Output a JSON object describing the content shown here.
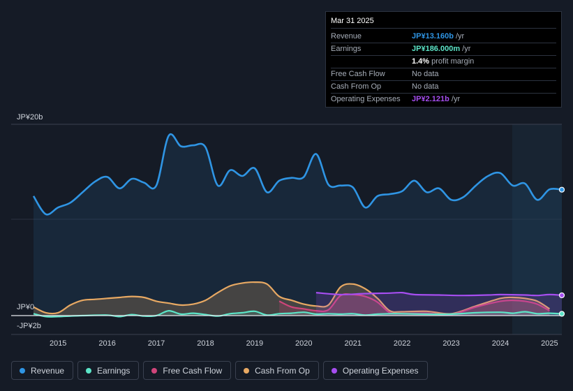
{
  "tooltip": {
    "date": "Mar 31 2025",
    "rows": [
      {
        "label": "Revenue",
        "value": "JP¥13.160b",
        "suffix": " /yr"
      },
      {
        "label": "Earnings",
        "value": "JP¥186.000m",
        "suffix": " /yr"
      },
      {
        "label": "",
        "value": "1.4%",
        "suffix": " profit margin"
      },
      {
        "label": "Free Cash Flow",
        "value": "No data",
        "suffix": ""
      },
      {
        "label": "Cash From Op",
        "value": "No data",
        "suffix": ""
      },
      {
        "label": "Operating Expenses",
        "value": "JP¥2.121b",
        "suffix": " /yr"
      }
    ]
  },
  "legend": {
    "revenue": "Revenue",
    "earnings": "Earnings",
    "fcf": "Free Cash Flow",
    "cfo": "Cash From Op",
    "opex": "Operating Expenses"
  },
  "colors": {
    "revenue": "#2f95e4",
    "earnings": "#5ce5c8",
    "fcf": "#d0457a",
    "cfo": "#e8a963",
    "opex": "#a64ef0"
  },
  "chart_data": {
    "type": "area",
    "title": "",
    "xlabel": "",
    "ylabel": "",
    "y_axis_labels": [
      "JP¥20b",
      "JP¥0",
      "-JP¥2b"
    ],
    "x_tick_labels": [
      "2015",
      "2016",
      "2017",
      "2018",
      "2019",
      "2020",
      "2021",
      "2022",
      "2023",
      "2024",
      "2025"
    ],
    "x_tick_values": [
      2015,
      2016,
      2017,
      2018,
      2019,
      2020,
      2021,
      2022,
      2023,
      2024,
      2025
    ],
    "xlim": [
      2014.5,
      2025.25
    ],
    "ylim": [
      -2,
      20
    ],
    "highlight_from": 2024.25,
    "series": [
      {
        "name": "Revenue",
        "key": "revenue",
        "points": [
          [
            2014.5,
            12.5
          ],
          [
            2014.75,
            10.6
          ],
          [
            2015.0,
            11.3
          ],
          [
            2015.25,
            11.8
          ],
          [
            2015.5,
            12.9
          ],
          [
            2015.75,
            14.0
          ],
          [
            2016.0,
            14.5
          ],
          [
            2016.25,
            13.3
          ],
          [
            2016.5,
            14.3
          ],
          [
            2016.75,
            13.9
          ],
          [
            2017.0,
            13.6
          ],
          [
            2017.25,
            18.8
          ],
          [
            2017.5,
            17.7
          ],
          [
            2017.75,
            17.8
          ],
          [
            2018.0,
            17.6
          ],
          [
            2018.25,
            13.6
          ],
          [
            2018.5,
            15.2
          ],
          [
            2018.75,
            14.6
          ],
          [
            2019.0,
            15.4
          ],
          [
            2019.25,
            12.9
          ],
          [
            2019.5,
            14.1
          ],
          [
            2019.75,
            14.4
          ],
          [
            2020.0,
            14.5
          ],
          [
            2020.25,
            16.9
          ],
          [
            2020.5,
            13.7
          ],
          [
            2020.75,
            13.6
          ],
          [
            2021.0,
            13.4
          ],
          [
            2021.25,
            11.3
          ],
          [
            2021.5,
            12.5
          ],
          [
            2021.75,
            12.7
          ],
          [
            2022.0,
            13.0
          ],
          [
            2022.25,
            14.1
          ],
          [
            2022.5,
            12.9
          ],
          [
            2022.75,
            13.3
          ],
          [
            2023.0,
            12.1
          ],
          [
            2023.25,
            12.4
          ],
          [
            2023.5,
            13.6
          ],
          [
            2023.75,
            14.6
          ],
          [
            2024.0,
            14.9
          ],
          [
            2024.25,
            13.6
          ],
          [
            2024.5,
            13.8
          ],
          [
            2024.75,
            12.1
          ],
          [
            2025.0,
            13.2
          ],
          [
            2025.25,
            13.16
          ]
        ]
      },
      {
        "name": "Earnings",
        "key": "earnings",
        "points": [
          [
            2014.5,
            0.2
          ],
          [
            2014.75,
            -0.1
          ],
          [
            2015.0,
            -0.1
          ],
          [
            2015.5,
            0.0
          ],
          [
            2016.0,
            0.05
          ],
          [
            2016.25,
            -0.1
          ],
          [
            2016.5,
            0.1
          ],
          [
            2016.75,
            -0.05
          ],
          [
            2017.0,
            0.0
          ],
          [
            2017.25,
            0.5
          ],
          [
            2017.5,
            0.15
          ],
          [
            2017.75,
            0.25
          ],
          [
            2018.0,
            0.1
          ],
          [
            2018.25,
            -0.05
          ],
          [
            2018.5,
            0.2
          ],
          [
            2018.75,
            0.3
          ],
          [
            2019.0,
            0.45
          ],
          [
            2019.25,
            0.05
          ],
          [
            2019.5,
            0.2
          ],
          [
            2019.75,
            0.25
          ],
          [
            2020.0,
            0.35
          ],
          [
            2020.25,
            0.15
          ],
          [
            2020.5,
            0.2
          ],
          [
            2020.75,
            0.15
          ],
          [
            2021.0,
            0.2
          ],
          [
            2021.25,
            0.05
          ],
          [
            2021.5,
            0.15
          ],
          [
            2021.75,
            0.2
          ],
          [
            2022.0,
            0.2
          ],
          [
            2022.5,
            0.15
          ],
          [
            2023.0,
            0.15
          ],
          [
            2023.5,
            0.3
          ],
          [
            2024.0,
            0.35
          ],
          [
            2024.25,
            0.25
          ],
          [
            2024.5,
            0.4
          ],
          [
            2024.75,
            0.2
          ],
          [
            2025.0,
            0.25
          ],
          [
            2025.25,
            0.186
          ]
        ]
      },
      {
        "name": "Free Cash Flow",
        "key": "fcf",
        "points": [
          [
            2019.5,
            1.5
          ],
          [
            2019.75,
            0.9
          ],
          [
            2020.0,
            0.7
          ],
          [
            2020.25,
            0.5
          ],
          [
            2020.5,
            0.6
          ],
          [
            2020.75,
            2.1
          ],
          [
            2021.0,
            2.2
          ],
          [
            2021.25,
            2.0
          ],
          [
            2021.5,
            1.4
          ],
          [
            2021.75,
            0.3
          ],
          [
            2022.0,
            0.2
          ],
          [
            2022.5,
            0.25
          ],
          [
            2023.0,
            0.1
          ],
          [
            2023.5,
            0.9
          ],
          [
            2024.0,
            1.5
          ],
          [
            2024.25,
            1.6
          ],
          [
            2024.5,
            1.5
          ],
          [
            2024.75,
            1.2
          ],
          [
            2025.0,
            0.5
          ]
        ]
      },
      {
        "name": "Cash From Op",
        "key": "cfo",
        "points": [
          [
            2014.5,
            0.9
          ],
          [
            2014.75,
            0.3
          ],
          [
            2015.0,
            0.3
          ],
          [
            2015.25,
            1.1
          ],
          [
            2015.5,
            1.6
          ],
          [
            2015.75,
            1.7
          ],
          [
            2016.0,
            1.8
          ],
          [
            2016.25,
            1.9
          ],
          [
            2016.5,
            2.0
          ],
          [
            2016.75,
            1.9
          ],
          [
            2017.0,
            1.5
          ],
          [
            2017.25,
            1.3
          ],
          [
            2017.5,
            1.1
          ],
          [
            2017.75,
            1.2
          ],
          [
            2018.0,
            1.6
          ],
          [
            2018.25,
            2.4
          ],
          [
            2018.5,
            3.1
          ],
          [
            2018.75,
            3.4
          ],
          [
            2019.0,
            3.5
          ],
          [
            2019.25,
            3.3
          ],
          [
            2019.5,
            2.0
          ],
          [
            2019.75,
            1.6
          ],
          [
            2020.0,
            1.2
          ],
          [
            2020.25,
            1.0
          ],
          [
            2020.5,
            1.1
          ],
          [
            2020.75,
            3.0
          ],
          [
            2021.0,
            3.3
          ],
          [
            2021.25,
            2.8
          ],
          [
            2021.5,
            1.8
          ],
          [
            2021.75,
            0.5
          ],
          [
            2022.0,
            0.4
          ],
          [
            2022.5,
            0.45
          ],
          [
            2023.0,
            0.2
          ],
          [
            2023.5,
            1.0
          ],
          [
            2024.0,
            1.8
          ],
          [
            2024.25,
            1.9
          ],
          [
            2024.5,
            1.8
          ],
          [
            2024.75,
            1.5
          ],
          [
            2025.0,
            0.7
          ]
        ]
      },
      {
        "name": "Operating Expenses",
        "key": "opex",
        "points": [
          [
            2020.25,
            2.4
          ],
          [
            2020.75,
            2.2
          ],
          [
            2021.25,
            2.3
          ],
          [
            2021.75,
            2.35
          ],
          [
            2022.0,
            2.4
          ],
          [
            2022.25,
            2.2
          ],
          [
            2022.75,
            2.15
          ],
          [
            2023.25,
            2.1
          ],
          [
            2023.75,
            2.15
          ],
          [
            2024.0,
            2.2
          ],
          [
            2024.5,
            2.15
          ],
          [
            2024.75,
            2.1
          ],
          [
            2025.0,
            2.2
          ],
          [
            2025.25,
            2.121
          ]
        ]
      }
    ]
  }
}
